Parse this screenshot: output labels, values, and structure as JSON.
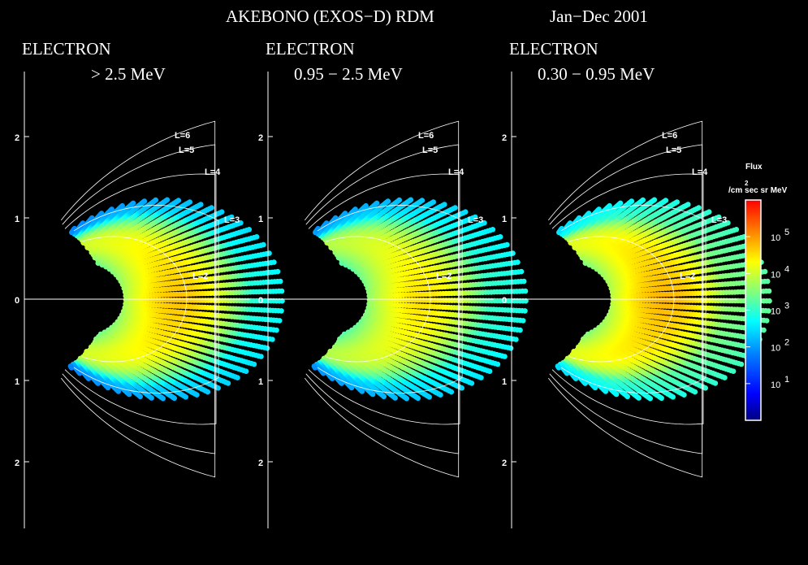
{
  "title": "AKEBONO (EXOS−D)    RDM",
  "date_range": "Jan−Dec  2001",
  "chart_data": {
    "type": "heatmap",
    "panels": [
      {
        "particle": "ELECTRON",
        "energy": "> 2.5 MeV",
        "peak_log_flux": 4.7,
        "slot_outer_log_flux": 3.0
      },
      {
        "particle": "ELECTRON",
        "energy": "0.95 − 2.5 MeV",
        "peak_log_flux": 4.5,
        "slot_outer_log_flux": 3.1
      },
      {
        "particle": "ELECTRON",
        "energy": "0.30 − 0.95 MeV",
        "peak_log_flux": 4.8,
        "slot_outer_log_flux": 3.6
      }
    ],
    "axis_ticks_upper": [
      "2",
      "1",
      "0"
    ],
    "axis_ticks_lower": [
      "1",
      "2"
    ],
    "l_shells": [
      {
        "label": "L=6",
        "L": 6
      },
      {
        "label": "L=5",
        "L": 5
      },
      {
        "label": "L=4",
        "L": 4
      },
      {
        "label": "L=3",
        "L": 3
      },
      {
        "label": "L=2",
        "L": 2
      }
    ],
    "colorbar": {
      "label": "Flux",
      "units_sup": "2",
      "units": "/cm sec sr MeV",
      "ticks": [
        {
          "base": "10",
          "exp": "5",
          "log": 5
        },
        {
          "base": "10",
          "exp": "4",
          "log": 4
        },
        {
          "base": "10",
          "exp": "3",
          "log": 3
        },
        {
          "base": "10",
          "exp": "2",
          "log": 2
        },
        {
          "base": "10",
          "exp": "1",
          "log": 1
        }
      ],
      "range_log": [
        0,
        6
      ]
    },
    "colors": [
      "#00007f",
      "#0000ff",
      "#007fff",
      "#00ffff",
      "#7fff7f",
      "#ffff00",
      "#ff7f00",
      "#ff0000"
    ]
  }
}
